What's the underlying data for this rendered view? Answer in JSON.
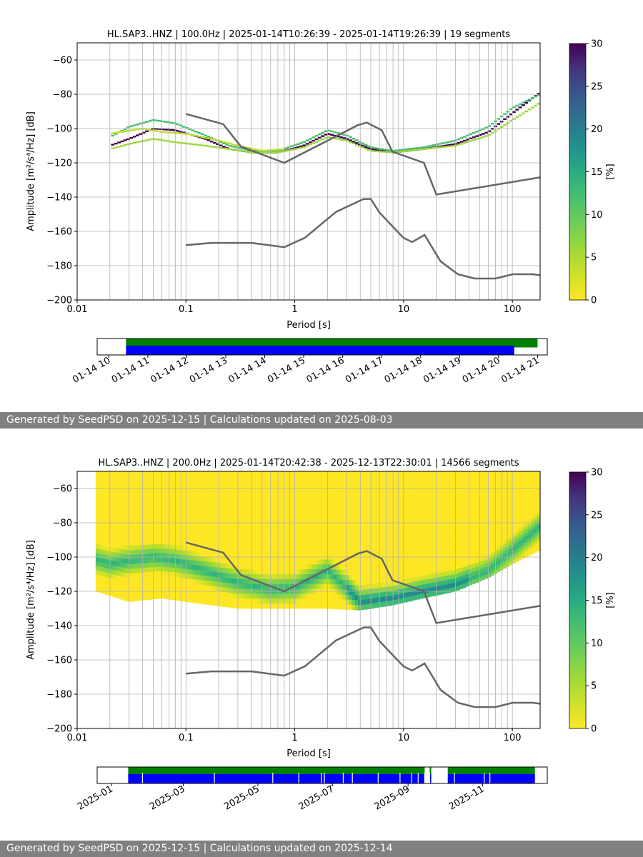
{
  "chart_data": [
    {
      "type": "heatmap",
      "title": "HL.SAP3..HNZ | 100.0Hz | 2025-01-14T10:26:39 - 2025-01-14T19:26:39 | 19 segments",
      "xlabel": "Period [s]",
      "ylabel": "Amplitude [m²/s⁴/Hz] [dB]",
      "xscale": "log",
      "xlim": [
        0.01,
        180
      ],
      "ylim": [
        -200,
        -50
      ],
      "xticks": [
        "0.01",
        "0.1",
        "1",
        "10",
        "100"
      ],
      "yticks": [
        "−60",
        "−80",
        "−100",
        "−120",
        "−140",
        "−160",
        "−180",
        "−200"
      ],
      "grid": true,
      "colorbar": {
        "label": "[%]",
        "range": [
          0,
          30
        ],
        "ticks": [
          "0",
          "5",
          "10",
          "15",
          "20",
          "25",
          "30"
        ],
        "colormap": "viridis_r"
      },
      "noise_model_color": "#666666",
      "high_noise_model": [
        [
          0.1,
          -91.5
        ],
        [
          0.22,
          -97.4
        ],
        [
          0.32,
          -110.5
        ],
        [
          0.8,
          -120
        ],
        [
          3.8,
          -98
        ],
        [
          4.6,
          -96.5
        ],
        [
          6.3,
          -101
        ],
        [
          7.9,
          -113.5
        ],
        [
          15.4,
          -120
        ],
        [
          20,
          -138.5
        ],
        [
          180,
          -128.5
        ]
      ],
      "low_noise_model": [
        [
          0.1,
          -168
        ],
        [
          0.17,
          -166.7
        ],
        [
          0.4,
          -166.7
        ],
        [
          0.8,
          -169.2
        ],
        [
          1.24,
          -163.7
        ],
        [
          2.4,
          -148.6
        ],
        [
          4.3,
          -141.1
        ],
        [
          5,
          -141.1
        ],
        [
          6,
          -149
        ],
        [
          10,
          -163.8
        ],
        [
          12,
          -166.2
        ],
        [
          15.6,
          -162.1
        ],
        [
          21.9,
          -177.5
        ],
        [
          31.6,
          -185
        ],
        [
          45,
          -187.5
        ],
        [
          70,
          -187.5
        ],
        [
          101,
          -185
        ],
        [
          154,
          -185
        ],
        [
          180,
          -185.6
        ]
      ],
      "psd_curves": [
        {
          "weight": 30,
          "points": [
            [
              0.02,
              -110
            ],
            [
              0.03,
              -106
            ],
            [
              0.05,
              -100
            ],
            [
              0.08,
              -101
            ],
            [
              0.15,
              -106
            ],
            [
              0.25,
              -112
            ],
            [
              0.4,
              -114
            ],
            [
              0.7,
              -114
            ],
            [
              1.2,
              -110
            ],
            [
              2,
              -103
            ],
            [
              3,
              -106
            ],
            [
              5,
              -112
            ],
            [
              8,
              -114
            ],
            [
              15,
              -112
            ],
            [
              30,
              -109
            ],
            [
              60,
              -102
            ],
            [
              100,
              -91
            ],
            [
              180,
              -79
            ]
          ]
        },
        {
          "weight": 12,
          "points": [
            [
              0.02,
              -105
            ],
            [
              0.03,
              -99
            ],
            [
              0.05,
              -95
            ],
            [
              0.08,
              -97
            ],
            [
              0.15,
              -104
            ],
            [
              0.25,
              -110
            ],
            [
              0.4,
              -113
            ],
            [
              0.7,
              -113
            ],
            [
              1.2,
              -108
            ],
            [
              2,
              -101
            ],
            [
              3,
              -104
            ],
            [
              5,
              -111
            ],
            [
              8,
              -113
            ],
            [
              15,
              -111
            ],
            [
              30,
              -107
            ],
            [
              60,
              -99
            ],
            [
              100,
              -88
            ],
            [
              180,
              -80
            ]
          ]
        },
        {
          "weight": 6,
          "points": [
            [
              0.02,
              -112
            ],
            [
              0.03,
              -109
            ],
            [
              0.05,
              -106
            ],
            [
              0.08,
              -108
            ],
            [
              0.15,
              -110
            ],
            [
              0.25,
              -112
            ],
            [
              0.4,
              -114
            ],
            [
              0.7,
              -114
            ],
            [
              1.2,
              -111
            ],
            [
              2,
              -105
            ],
            [
              3,
              -107
            ],
            [
              5,
              -113
            ],
            [
              8,
              -114
            ],
            [
              15,
              -112
            ],
            [
              30,
              -110
            ],
            [
              60,
              -104
            ],
            [
              100,
              -95
            ],
            [
              180,
              -85
            ]
          ]
        },
        {
          "weight": 4,
          "points": [
            [
              0.02,
              -103
            ],
            [
              0.04,
              -100
            ],
            [
              0.06,
              -102
            ],
            [
              0.1,
              -103
            ],
            [
              0.2,
              -107
            ],
            [
              0.3,
              -110
            ],
            [
              0.5,
              -113
            ],
            [
              0.8,
              -112
            ]
          ]
        }
      ],
      "data_availability": {
        "x_tick_labels": [
          "01-14 10",
          "01-14 11",
          "01-14 12",
          "01-14 13",
          "01-14 14",
          "01-14 15",
          "01-14 16",
          "01-14 17",
          "01-14 18",
          "01-14 19",
          "01-14 20",
          "01-14 21"
        ],
        "time_start_hours": 9.7,
        "time_end_hours": 21.25,
        "bars": [
          {
            "color": "#008000",
            "start_hours": 10.44,
            "end_hours": 21.0
          },
          {
            "color": "#0000ff",
            "start_hours": 10.44,
            "end_hours": 20.4
          }
        ]
      }
    },
    {
      "type": "heatmap",
      "title": "HL.SAP3..HNZ | 200.0Hz | 2025-01-14T20:42:38 - 2025-12-13T22:30:01 | 14566 segments",
      "xlabel": "Period [s]",
      "ylabel": "Amplitude [m²/s⁴/Hz] [dB]",
      "xscale": "log",
      "xlim": [
        0.01,
        180
      ],
      "ylim": [
        -200,
        -50
      ],
      "xticks": [
        "0.01",
        "0.1",
        "1",
        "10",
        "100"
      ],
      "yticks": [
        "−60",
        "−80",
        "−100",
        "−120",
        "−140",
        "−160",
        "−180",
        "−200"
      ],
      "grid": true,
      "colorbar": {
        "label": "[%]",
        "range": [
          0,
          30
        ],
        "ticks": [
          "0",
          "5",
          "10",
          "15",
          "20",
          "25",
          "30"
        ],
        "colormap": "viridis_r"
      },
      "noise_model_color": "#666666",
      "envelope_upper": [
        [
          0.01,
          -90
        ],
        [
          0.015,
          -75
        ],
        [
          0.03,
          -68
        ],
        [
          0.08,
          -72
        ],
        [
          0.15,
          -68
        ],
        [
          0.2,
          -61
        ],
        [
          0.5,
          -60
        ],
        [
          1,
          -62
        ],
        [
          2,
          -68
        ],
        [
          4,
          -70
        ],
        [
          8,
          -72
        ],
        [
          12,
          -75
        ],
        [
          20,
          -78
        ],
        [
          40,
          -82
        ],
        [
          70,
          -78
        ],
        [
          100,
          -70
        ],
        [
          180,
          -62
        ]
      ],
      "envelope_lower": [
        [
          0.01,
          -106
        ],
        [
          0.015,
          -120
        ],
        [
          0.03,
          -126
        ],
        [
          0.06,
          -124
        ],
        [
          0.1,
          -126
        ],
        [
          0.3,
          -130
        ],
        [
          0.8,
          -130
        ],
        [
          2,
          -130
        ],
        [
          4,
          -131
        ],
        [
          8,
          -128
        ],
        [
          15,
          -124
        ],
        [
          30,
          -120
        ],
        [
          60,
          -112
        ],
        [
          100,
          -104
        ],
        [
          180,
          -96
        ]
      ],
      "psd_mode_band": [
        [
          0.01,
          -98
        ],
        [
          0.02,
          -104
        ],
        [
          0.05,
          -100
        ],
        [
          0.08,
          -102
        ],
        [
          0.15,
          -108
        ],
        [
          0.3,
          -115
        ],
        [
          0.6,
          -119
        ],
        [
          1,
          -118
        ],
        [
          2,
          -108
        ],
        [
          3,
          -118
        ],
        [
          4,
          -126
        ],
        [
          8,
          -124
        ],
        [
          15,
          -120
        ],
        [
          30,
          -116
        ],
        [
          60,
          -108
        ],
        [
          100,
          -96
        ],
        [
          180,
          -82
        ]
      ],
      "high_noise_model": [
        [
          0.1,
          -91.5
        ],
        [
          0.22,
          -97.4
        ],
        [
          0.32,
          -110.5
        ],
        [
          0.8,
          -120
        ],
        [
          3.8,
          -98
        ],
        [
          4.6,
          -96.5
        ],
        [
          6.3,
          -101
        ],
        [
          7.9,
          -113.5
        ],
        [
          15.4,
          -120
        ],
        [
          20,
          -138.5
        ],
        [
          180,
          -128.5
        ]
      ],
      "low_noise_model": [
        [
          0.1,
          -168
        ],
        [
          0.17,
          -166.7
        ],
        [
          0.4,
          -166.7
        ],
        [
          0.8,
          -169.2
        ],
        [
          1.24,
          -163.7
        ],
        [
          2.4,
          -148.6
        ],
        [
          4.3,
          -141.1
        ],
        [
          5,
          -141.1
        ],
        [
          6,
          -149
        ],
        [
          10,
          -163.8
        ],
        [
          12,
          -166.2
        ],
        [
          15.6,
          -162.1
        ],
        [
          21.9,
          -177.5
        ],
        [
          31.6,
          -185
        ],
        [
          45,
          -187.5
        ],
        [
          70,
          -187.5
        ],
        [
          101,
          -185
        ],
        [
          154,
          -185
        ],
        [
          180,
          -185.6
        ]
      ],
      "data_availability": {
        "x_tick_labels": [
          "2025-01",
          "2025-03",
          "2025-05",
          "2025-07",
          "2025-09",
          "2025-11"
        ],
        "time_start_days": -11.6,
        "time_end_days": 357,
        "bars": [
          {
            "color": "#008000",
            "start_days": 13.8,
            "end_days": 346.9
          },
          {
            "color": "#0000ff",
            "start_days": 13.8,
            "end_days": 346.9
          }
        ],
        "gaps_days": [
          25.5,
          84.4,
          132.2,
          153.5,
          171.9,
          174.5,
          189.9,
          197.4,
          218.5,
          236.4,
          246,
          251.3,
          256.6,
          260.7,
          281,
          305.4,
          310
        ]
      }
    }
  ],
  "panels": [
    {
      "footer": "Generated by SeedPSD on 2025-12-15 | Calculations updated on 2025-08-03"
    },
    {
      "footer": "Generated by SeedPSD on 2025-12-15 | Calculations updated on 2025-12-14"
    }
  ]
}
